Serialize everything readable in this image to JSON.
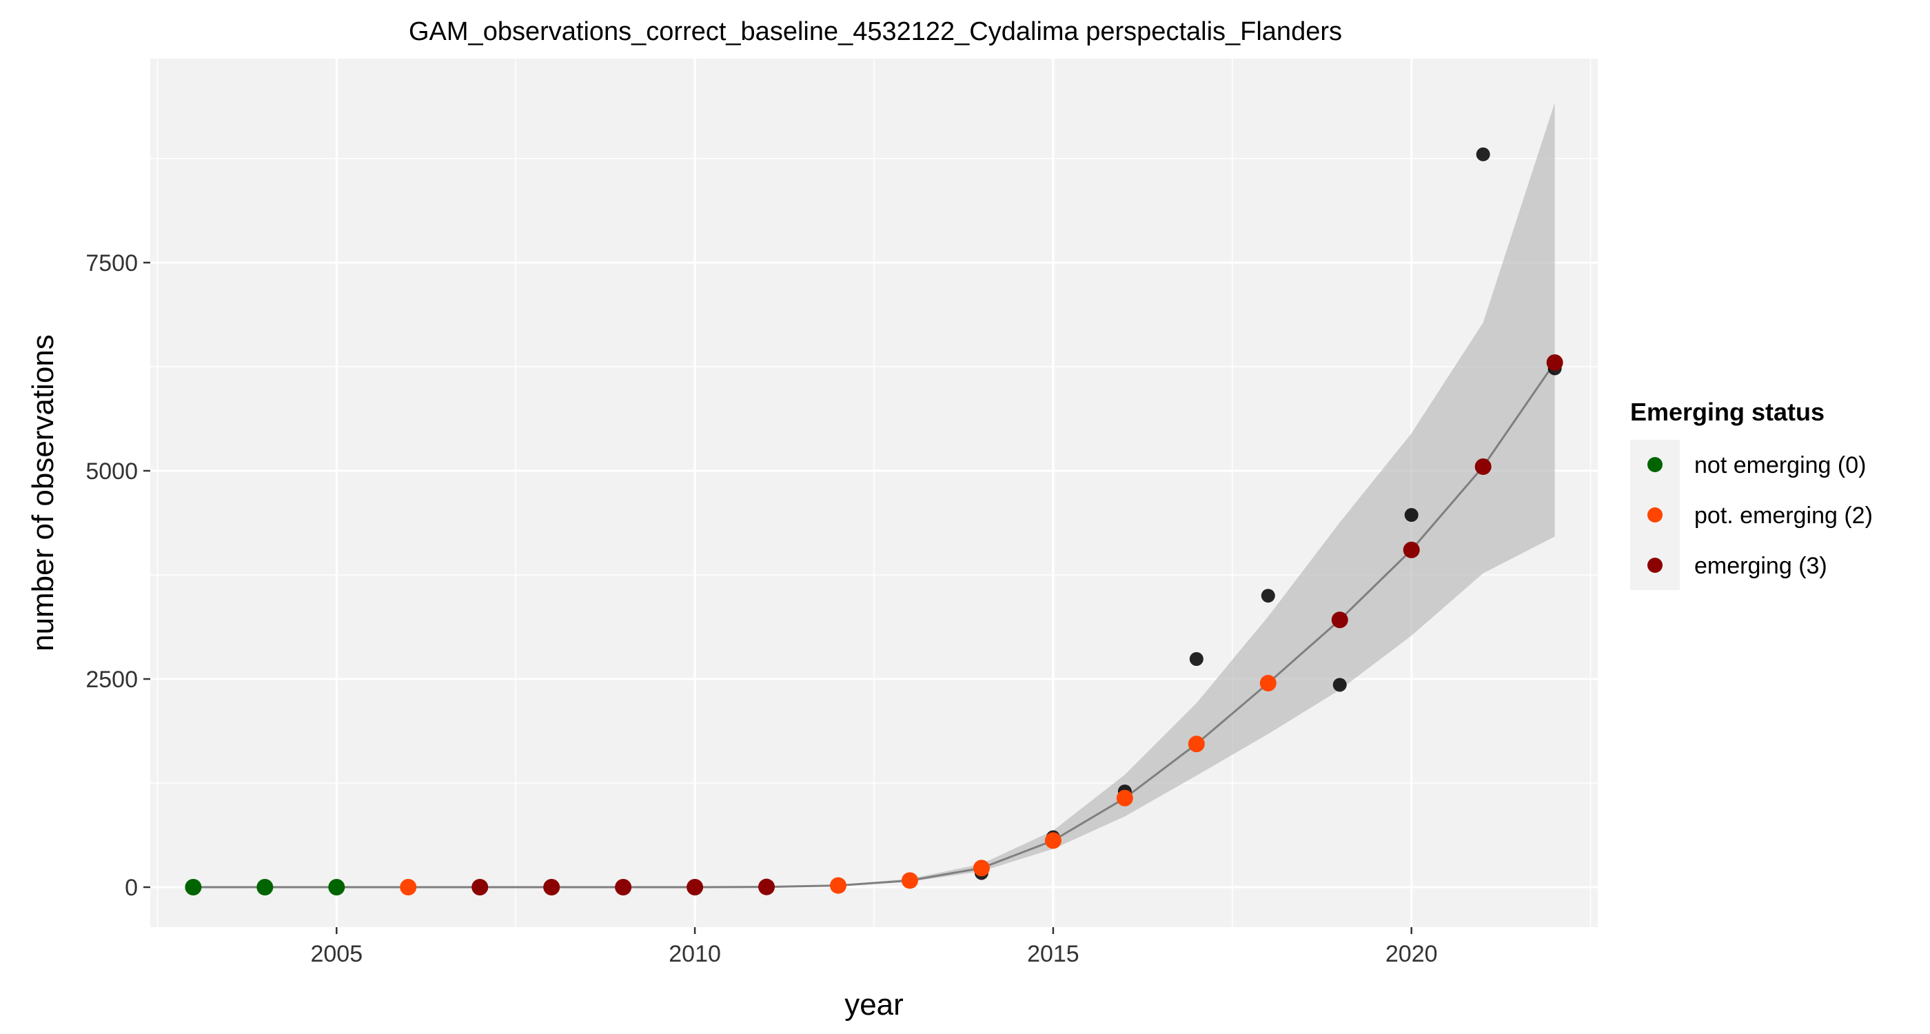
{
  "chart_data": {
    "type": "scatter",
    "title": "GAM_observations_correct_baseline_4532122_Cydalima perspectalis_Flanders",
    "xlabel": "year",
    "ylabel": "number of observations",
    "xlim": [
      2002.4,
      2022.6
    ],
    "ylim": [
      -480,
      9950
    ],
    "x_ticks": [
      2005,
      2010,
      2015,
      2020
    ],
    "x_tick_labels": [
      "2005",
      "2010",
      "2015",
      "2020"
    ],
    "y_ticks": [
      0,
      2500,
      5000,
      7500
    ],
    "y_tick_labels": [
      "0",
      "2500",
      "5000",
      "7500"
    ],
    "grid": true,
    "panel_background": "#f2f2f2",
    "legend_position": "right",
    "legend_title": "Emerging status",
    "legend": [
      {
        "label": "not emerging (0)",
        "color": "#006400"
      },
      {
        "label": "pot. emerging (2)",
        "color": "#ff4500"
      },
      {
        "label": "emerging (3)",
        "color": "#8b0000"
      }
    ],
    "observed": [
      {
        "x": 2003,
        "y": 0
      },
      {
        "x": 2004,
        "y": 0
      },
      {
        "x": 2005,
        "y": 0
      },
      {
        "x": 2006,
        "y": 0
      },
      {
        "x": 2007,
        "y": 0
      },
      {
        "x": 2008,
        "y": 0
      },
      {
        "x": 2009,
        "y": 0
      },
      {
        "x": 2010,
        "y": 0
      },
      {
        "x": 2011,
        "y": 2
      },
      {
        "x": 2012,
        "y": 20
      },
      {
        "x": 2013,
        "y": 80
      },
      {
        "x": 2014,
        "y": 170
      },
      {
        "x": 2015,
        "y": 600
      },
      {
        "x": 2016,
        "y": 1150
      },
      {
        "x": 2017,
        "y": 2740
      },
      {
        "x": 2018,
        "y": 3500
      },
      {
        "x": 2019,
        "y": 2430
      },
      {
        "x": 2020,
        "y": 4470
      },
      {
        "x": 2021,
        "y": 8800
      },
      {
        "x": 2022,
        "y": 6230
      }
    ],
    "fitted": [
      {
        "x": 2003,
        "y": 0,
        "lower": 0,
        "upper": 0,
        "status": 0
      },
      {
        "x": 2004,
        "y": 0,
        "lower": 0,
        "upper": 0,
        "status": 0
      },
      {
        "x": 2005,
        "y": 0,
        "lower": 0,
        "upper": 0,
        "status": 0
      },
      {
        "x": 2006,
        "y": 0,
        "lower": 0,
        "upper": 0,
        "status": 2
      },
      {
        "x": 2007,
        "y": 0,
        "lower": 0,
        "upper": 0,
        "status": 3
      },
      {
        "x": 2008,
        "y": 0,
        "lower": 0,
        "upper": 0,
        "status": 3
      },
      {
        "x": 2009,
        "y": 0,
        "lower": 0,
        "upper": 0,
        "status": 3
      },
      {
        "x": 2010,
        "y": 0,
        "lower": 0,
        "upper": 0,
        "status": 3
      },
      {
        "x": 2011,
        "y": 3,
        "lower": 2,
        "upper": 5,
        "status": 3
      },
      {
        "x": 2012,
        "y": 20,
        "lower": 15,
        "upper": 26,
        "status": 2
      },
      {
        "x": 2013,
        "y": 80,
        "lower": 65,
        "upper": 100,
        "status": 2
      },
      {
        "x": 2014,
        "y": 230,
        "lower": 190,
        "upper": 280,
        "status": 2
      },
      {
        "x": 2015,
        "y": 560,
        "lower": 460,
        "upper": 680,
        "status": 2
      },
      {
        "x": 2016,
        "y": 1070,
        "lower": 850,
        "upper": 1350,
        "status": 2
      },
      {
        "x": 2017,
        "y": 1720,
        "lower": 1340,
        "upper": 2210,
        "status": 2
      },
      {
        "x": 2018,
        "y": 2450,
        "lower": 1840,
        "upper": 3250,
        "status": 2
      },
      {
        "x": 2019,
        "y": 3210,
        "lower": 2370,
        "upper": 4380,
        "status": 3
      },
      {
        "x": 2020,
        "y": 4050,
        "lower": 3020,
        "upper": 5450,
        "status": 3
      },
      {
        "x": 2021,
        "y": 5050,
        "lower": 3770,
        "upper": 6780,
        "status": 3
      },
      {
        "x": 2022,
        "y": 6300,
        "lower": 4210,
        "upper": 9420,
        "status": 3
      }
    ]
  }
}
